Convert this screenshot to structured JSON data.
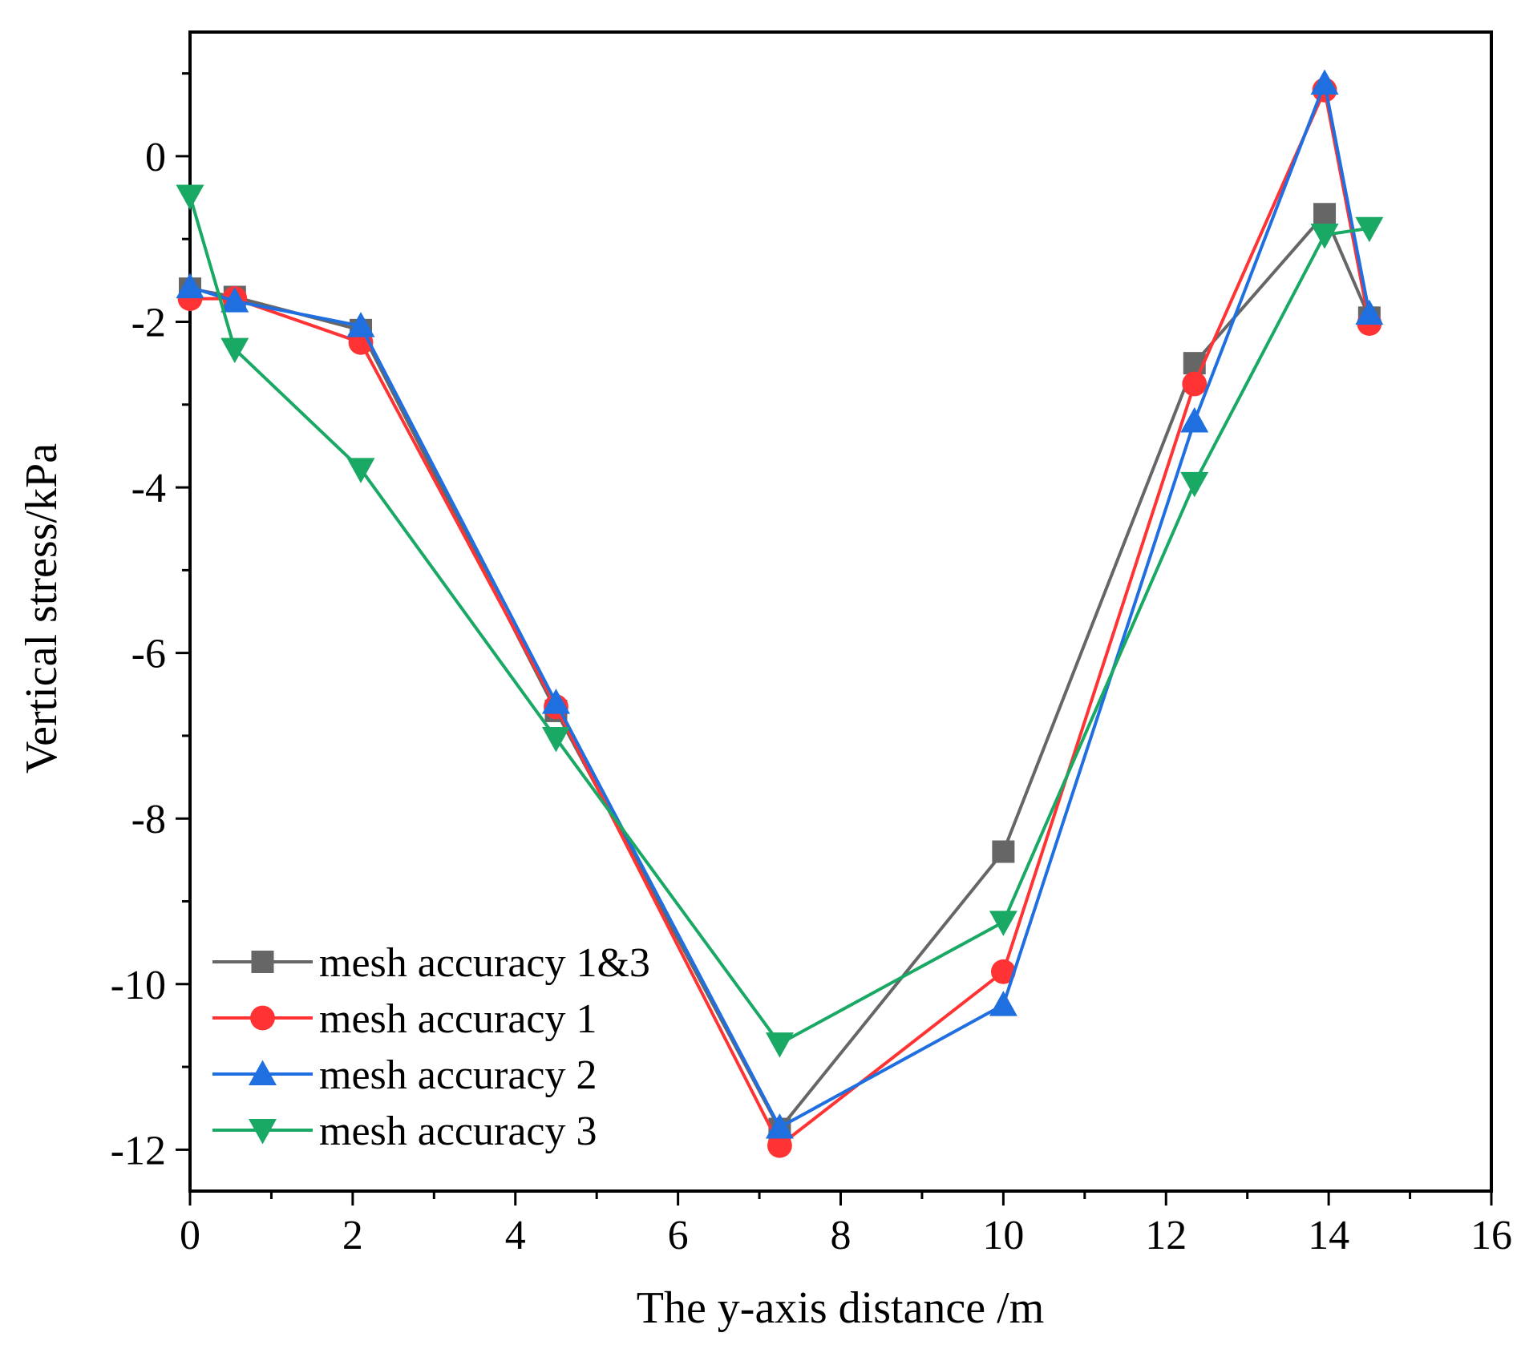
{
  "chart_data": {
    "type": "line",
    "title": "",
    "xlabel": "The y-axis distance /m",
    "ylabel": "Vertical stress/kPa",
    "xlim": [
      0,
      16
    ],
    "ylim": [
      -12.5,
      1.5
    ],
    "x_ticks": [
      0,
      2,
      4,
      6,
      8,
      10,
      12,
      14,
      16
    ],
    "x_tick_labels": [
      "0",
      "2",
      "4",
      "6",
      "8",
      "10",
      "12",
      "14",
      "16"
    ],
    "y_ticks": [
      0,
      -2,
      -4,
      -6,
      -8,
      -10,
      -12
    ],
    "y_tick_labels": [
      "0",
      "-2",
      "-4",
      "-6",
      "-8",
      "-10",
      "-12"
    ],
    "grid": false,
    "legend_position": "bottom-left",
    "series": [
      {
        "name": "mesh accuracy 1&3",
        "color": "#666666",
        "marker": "square",
        "points": [
          [
            0,
            -1.6
          ],
          [
            0.55,
            -1.7
          ],
          [
            2.1,
            -2.1
          ],
          [
            4.5,
            -6.7
          ],
          [
            7.25,
            -11.75
          ],
          [
            10.0,
            -8.4
          ],
          [
            12.35,
            -2.5
          ],
          [
            13.95,
            -0.7
          ],
          [
            14.5,
            -1.95
          ]
        ]
      },
      {
        "name": "mesh accuracy 1",
        "color": "#ff3333",
        "marker": "circle",
        "points": [
          [
            0,
            -1.72
          ],
          [
            0.55,
            -1.72
          ],
          [
            2.1,
            -2.25
          ],
          [
            4.5,
            -6.65
          ],
          [
            7.25,
            -11.95
          ],
          [
            10.0,
            -9.85
          ],
          [
            12.35,
            -2.75
          ],
          [
            13.95,
            0.8
          ],
          [
            14.5,
            -2.02
          ]
        ]
      },
      {
        "name": "mesh accuracy 2",
        "color": "#1f6fe0",
        "marker": "triangle-up",
        "points": [
          [
            0,
            -1.58
          ],
          [
            0.55,
            -1.75
          ],
          [
            2.1,
            -2.05
          ],
          [
            4.5,
            -6.6
          ],
          [
            7.25,
            -11.73
          ],
          [
            10.0,
            -10.25
          ],
          [
            12.35,
            -3.2
          ],
          [
            13.95,
            0.88
          ],
          [
            14.5,
            -1.9
          ]
        ]
      },
      {
        "name": "mesh accuracy 3",
        "color": "#1aa865",
        "marker": "triangle-down",
        "points": [
          [
            0,
            -0.48
          ],
          [
            0.55,
            -2.33
          ],
          [
            2.1,
            -3.78
          ],
          [
            4.5,
            -7.03
          ],
          [
            7.25,
            -10.72
          ],
          [
            10.0,
            -9.25
          ],
          [
            12.35,
            -3.95
          ],
          [
            13.95,
            -0.95
          ],
          [
            14.5,
            -0.87
          ]
        ]
      }
    ]
  }
}
